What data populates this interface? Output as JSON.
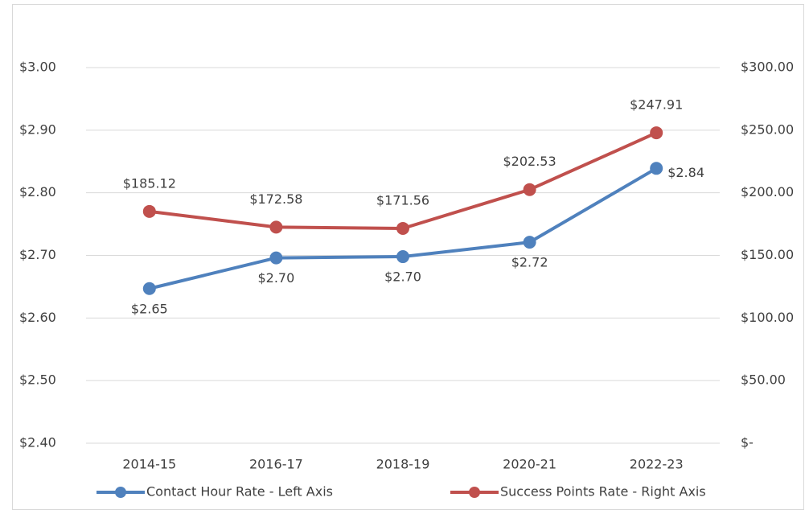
{
  "chart_data": {
    "type": "line",
    "categories": [
      "2014-15",
      "2016-17",
      "2018-19",
      "2020-21",
      "2022-23"
    ],
    "series": [
      {
        "name": "Contact Hour Rate - Left Axis",
        "color": "#4f81bd",
        "axis": "y",
        "values": [
          2.647,
          2.696,
          2.698,
          2.721,
          2.839
        ],
        "value_labels": [
          "$2.65",
          "$2.70",
          "$2.70",
          "$2.72",
          "$2.84"
        ]
      },
      {
        "name": "Success Points Rate - Right Axis",
        "color": "#c0504d",
        "axis": "y2",
        "values": [
          185.12,
          172.58,
          171.56,
          202.53,
          247.91
        ],
        "value_labels": [
          "$185.12",
          "$172.58",
          "$171.56",
          "$202.53",
          "$247.91"
        ]
      }
    ],
    "ylim": [
      2.4,
      3.0
    ],
    "yticks": [
      {
        "value": 2.4,
        "label": "$2.40"
      },
      {
        "value": 2.5,
        "label": "$2.50"
      },
      {
        "value": 2.6,
        "label": "$2.60"
      },
      {
        "value": 2.7,
        "label": "$2.70"
      },
      {
        "value": 2.8,
        "label": "$2.80"
      },
      {
        "value": 2.9,
        "label": "$2.90"
      },
      {
        "value": 3.0,
        "label": "$3.00"
      }
    ],
    "y2lim": [
      0,
      300
    ],
    "y2ticks": [
      {
        "value": 0,
        "label": "$-"
      },
      {
        "value": 50,
        "label": "$50.00"
      },
      {
        "value": 100,
        "label": "$100.00"
      },
      {
        "value": 150,
        "label": "$150.00"
      },
      {
        "value": 200,
        "label": "$200.00"
      },
      {
        "value": 250,
        "label": "$250.00"
      },
      {
        "value": 300,
        "label": "$300.00"
      }
    ],
    "grid": true,
    "legend": "bottom"
  }
}
